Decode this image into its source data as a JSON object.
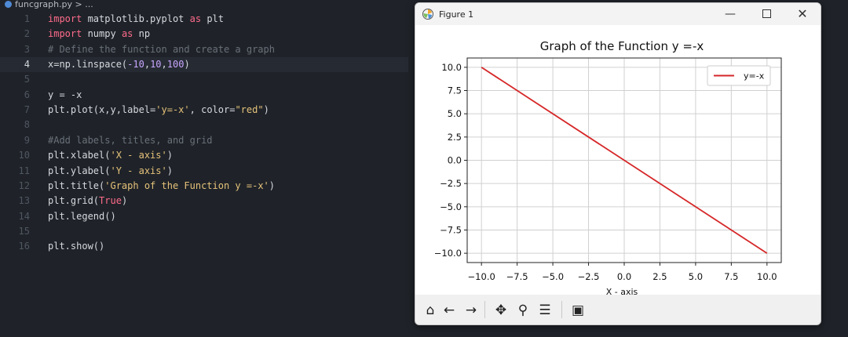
{
  "editor": {
    "breadcrumb": "funcgraph.py > ...",
    "active_line": 4,
    "lines": [
      {
        "n": "1",
        "tokens": [
          {
            "t": "import",
            "c": "kw"
          },
          {
            "t": " matplotlib.pyplot ",
            "c": ""
          },
          {
            "t": "as",
            "c": "kw"
          },
          {
            "t": " plt",
            "c": ""
          }
        ]
      },
      {
        "n": "2",
        "tokens": [
          {
            "t": "import",
            "c": "kw"
          },
          {
            "t": " numpy ",
            "c": ""
          },
          {
            "t": "as",
            "c": "kw"
          },
          {
            "t": " np",
            "c": ""
          }
        ]
      },
      {
        "n": "3",
        "tokens": [
          {
            "t": "# Define the function and create a graph",
            "c": "cm"
          }
        ]
      },
      {
        "n": "4",
        "tokens": [
          {
            "t": "x=np.linspace(",
            "c": ""
          },
          {
            "t": "-10",
            "c": "num"
          },
          {
            "t": ",",
            "c": ""
          },
          {
            "t": "10",
            "c": "num"
          },
          {
            "t": ",",
            "c": ""
          },
          {
            "t": "100",
            "c": "num"
          },
          {
            "t": ")",
            "c": ""
          }
        ]
      },
      {
        "n": "5",
        "tokens": []
      },
      {
        "n": "6",
        "tokens": [
          {
            "t": "y = -x",
            "c": ""
          }
        ]
      },
      {
        "n": "7",
        "tokens": [
          {
            "t": "plt.plot(x,y,label=",
            "c": ""
          },
          {
            "t": "'y=-x'",
            "c": "str"
          },
          {
            "t": ", color=",
            "c": ""
          },
          {
            "t": "\"red\"",
            "c": "str"
          },
          {
            "t": ")",
            "c": ""
          }
        ]
      },
      {
        "n": "8",
        "tokens": []
      },
      {
        "n": "9",
        "tokens": [
          {
            "t": "#Add labels, titles, and grid",
            "c": "cm"
          }
        ]
      },
      {
        "n": "10",
        "tokens": [
          {
            "t": "plt.xlabel(",
            "c": ""
          },
          {
            "t": "'X - axis'",
            "c": "str"
          },
          {
            "t": ")",
            "c": ""
          }
        ]
      },
      {
        "n": "11",
        "tokens": [
          {
            "t": "plt.ylabel(",
            "c": ""
          },
          {
            "t": "'Y - axis'",
            "c": "str"
          },
          {
            "t": ")",
            "c": ""
          }
        ]
      },
      {
        "n": "12",
        "tokens": [
          {
            "t": "plt.title(",
            "c": ""
          },
          {
            "t": "'Graph of the Function y =-x'",
            "c": "str"
          },
          {
            "t": ")",
            "c": ""
          }
        ]
      },
      {
        "n": "13",
        "tokens": [
          {
            "t": "plt.grid(",
            "c": ""
          },
          {
            "t": "True",
            "c": "kw"
          },
          {
            "t": ")",
            "c": ""
          }
        ]
      },
      {
        "n": "14",
        "tokens": [
          {
            "t": "plt.legend()",
            "c": ""
          }
        ]
      },
      {
        "n": "15",
        "tokens": []
      },
      {
        "n": "16",
        "tokens": [
          {
            "t": "plt.show()",
            "c": ""
          }
        ]
      }
    ]
  },
  "window": {
    "title": "Figure 1",
    "minimize_icon": "minimize-icon",
    "maximize_icon": "maximize-icon",
    "close_icon": "close-icon",
    "toolbar": [
      {
        "name": "home-icon",
        "glyph": "⌂"
      },
      {
        "name": "back-arrow-icon",
        "glyph": "←"
      },
      {
        "name": "forward-arrow-icon",
        "glyph": "→"
      },
      {
        "name": "pan-icon",
        "glyph": "✥"
      },
      {
        "name": "zoom-icon",
        "glyph": "⚲"
      },
      {
        "name": "configure-subplots-icon",
        "glyph": "☰"
      },
      {
        "name": "save-icon",
        "glyph": "▣"
      }
    ]
  },
  "chart_data": {
    "type": "line",
    "title": "Graph of the Function y =-x",
    "xlabel": "X - axis",
    "ylabel": "",
    "xlim": [
      -11,
      11
    ],
    "ylim": [
      -11,
      11
    ],
    "xticks": [
      -10.0,
      -7.5,
      -5.0,
      -2.5,
      0.0,
      2.5,
      5.0,
      7.5,
      10.0
    ],
    "yticks": [
      10.0,
      7.5,
      5.0,
      2.5,
      0.0,
      -2.5,
      -5.0,
      -7.5,
      -10.0
    ],
    "xtick_labels": [
      "−10.0",
      "−7.5",
      "−5.0",
      "−2.5",
      "0.0",
      "2.5",
      "5.0",
      "7.5",
      "10.0"
    ],
    "ytick_labels": [
      "10.0",
      "7.5",
      "5.0",
      "2.5",
      "0.0",
      "−2.5",
      "−5.0",
      "−7.5",
      "−10.0"
    ],
    "grid": true,
    "legend_position": "top-right",
    "series": [
      {
        "name": "y=-x",
        "color": "#d62728",
        "x": [
          -10,
          10
        ],
        "y": [
          10,
          -10
        ]
      }
    ]
  }
}
